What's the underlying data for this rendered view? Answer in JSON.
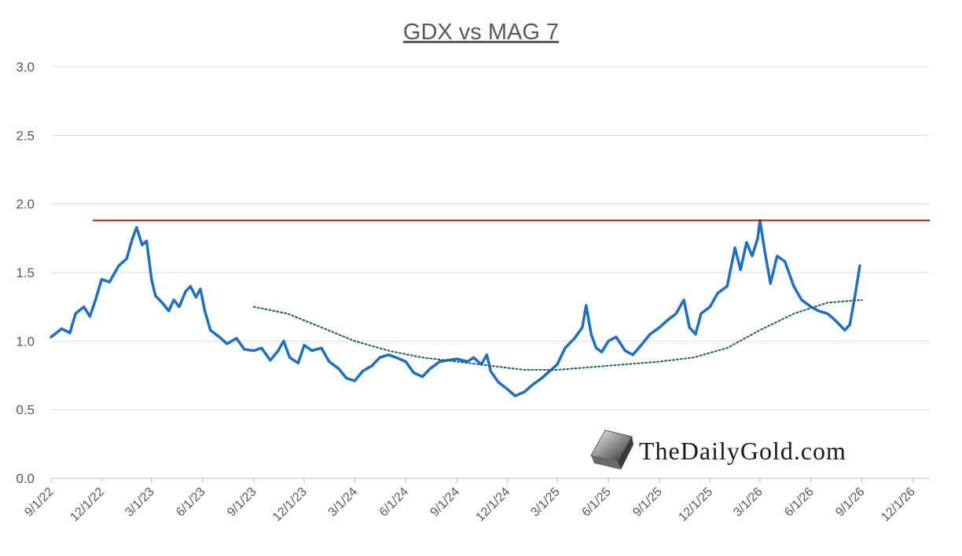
{
  "chart_data": {
    "type": "line",
    "title": "GDX vs MAG 7",
    "xlabel": "",
    "ylabel": "",
    "ylim": [
      0,
      3.0
    ],
    "yticks": [
      "0.0",
      "0.5",
      "1.0",
      "1.5",
      "2.0",
      "2.5",
      "3.0"
    ],
    "xlim": [
      "2022-09-01",
      "2027-01-01"
    ],
    "xticks": [
      "9/1/22",
      "12/1/22",
      "3/1/23",
      "6/1/23",
      "9/1/23",
      "12/1/23",
      "3/1/24",
      "6/1/24",
      "9/1/24",
      "12/1/24",
      "3/1/25",
      "6/1/25",
      "9/1/25",
      "12/1/25",
      "3/1/26",
      "6/1/26",
      "9/1/26",
      "12/1/26"
    ],
    "grid": true,
    "legend": "none",
    "series": [
      {
        "style": "solid",
        "color": "#1f6fbf",
        "points": [
          [
            "2022-09-01",
            1.03
          ],
          [
            "2022-09-20",
            1.09
          ],
          [
            "2022-10-05",
            1.06
          ],
          [
            "2022-10-15",
            1.2
          ],
          [
            "2022-10-30",
            1.25
          ],
          [
            "2022-11-10",
            1.18
          ],
          [
            "2022-11-20",
            1.3
          ],
          [
            "2022-12-01",
            1.45
          ],
          [
            "2022-12-15",
            1.43
          ],
          [
            "2023-01-01",
            1.55
          ],
          [
            "2023-01-15",
            1.6
          ],
          [
            "2023-01-25",
            1.74
          ],
          [
            "2023-02-02",
            1.83
          ],
          [
            "2023-02-12",
            1.7
          ],
          [
            "2023-02-20",
            1.73
          ],
          [
            "2023-03-01",
            1.45
          ],
          [
            "2023-03-08",
            1.33
          ],
          [
            "2023-03-20",
            1.28
          ],
          [
            "2023-04-01",
            1.22
          ],
          [
            "2023-04-10",
            1.3
          ],
          [
            "2023-04-20",
            1.25
          ],
          [
            "2023-05-01",
            1.36
          ],
          [
            "2023-05-10",
            1.4
          ],
          [
            "2023-05-20",
            1.32
          ],
          [
            "2023-05-28",
            1.38
          ],
          [
            "2023-06-05",
            1.22
          ],
          [
            "2023-06-15",
            1.08
          ],
          [
            "2023-07-01",
            1.03
          ],
          [
            "2023-07-15",
            0.98
          ],
          [
            "2023-08-01",
            1.02
          ],
          [
            "2023-08-15",
            0.94
          ],
          [
            "2023-09-01",
            0.93
          ],
          [
            "2023-09-15",
            0.95
          ],
          [
            "2023-10-01",
            0.86
          ],
          [
            "2023-10-15",
            0.93
          ],
          [
            "2023-10-25",
            1.0
          ],
          [
            "2023-11-05",
            0.88
          ],
          [
            "2023-11-20",
            0.84
          ],
          [
            "2023-12-01",
            0.97
          ],
          [
            "2023-12-15",
            0.93
          ],
          [
            "2024-01-01",
            0.95
          ],
          [
            "2024-01-15",
            0.85
          ],
          [
            "2024-02-01",
            0.8
          ],
          [
            "2024-02-15",
            0.73
          ],
          [
            "2024-03-01",
            0.71
          ],
          [
            "2024-03-15",
            0.78
          ],
          [
            "2024-04-01",
            0.82
          ],
          [
            "2024-04-15",
            0.88
          ],
          [
            "2024-05-01",
            0.9
          ],
          [
            "2024-05-15",
            0.88
          ],
          [
            "2024-06-01",
            0.85
          ],
          [
            "2024-06-15",
            0.77
          ],
          [
            "2024-07-01",
            0.74
          ],
          [
            "2024-07-15",
            0.8
          ],
          [
            "2024-08-01",
            0.85
          ],
          [
            "2024-08-15",
            0.86
          ],
          [
            "2024-09-01",
            0.87
          ],
          [
            "2024-09-20",
            0.85
          ],
          [
            "2024-10-01",
            0.88
          ],
          [
            "2024-10-15",
            0.83
          ],
          [
            "2024-10-25",
            0.9
          ],
          [
            "2024-11-01",
            0.78
          ],
          [
            "2024-11-15",
            0.7
          ],
          [
            "2024-12-01",
            0.65
          ],
          [
            "2024-12-15",
            0.6
          ],
          [
            "2025-01-01",
            0.63
          ],
          [
            "2025-01-15",
            0.68
          ],
          [
            "2025-02-01",
            0.73
          ],
          [
            "2025-02-15",
            0.78
          ],
          [
            "2025-03-01",
            0.83
          ],
          [
            "2025-03-15",
            0.95
          ],
          [
            "2025-04-01",
            1.02
          ],
          [
            "2025-04-15",
            1.1
          ],
          [
            "2025-04-22",
            1.26
          ],
          [
            "2025-05-01",
            1.05
          ],
          [
            "2025-05-10",
            0.95
          ],
          [
            "2025-05-20",
            0.92
          ],
          [
            "2025-06-01",
            1.0
          ],
          [
            "2025-06-15",
            1.03
          ],
          [
            "2025-07-01",
            0.93
          ],
          [
            "2025-07-15",
            0.9
          ],
          [
            "2025-08-01",
            0.98
          ],
          [
            "2025-08-15",
            1.05
          ],
          [
            "2025-09-01",
            1.1
          ],
          [
            "2025-09-15",
            1.15
          ],
          [
            "2025-10-01",
            1.2
          ],
          [
            "2025-10-15",
            1.3
          ],
          [
            "2025-10-25",
            1.1
          ],
          [
            "2025-11-05",
            1.05
          ],
          [
            "2025-11-15",
            1.2
          ],
          [
            "2025-12-01",
            1.25
          ],
          [
            "2025-12-15",
            1.35
          ],
          [
            "2026-01-01",
            1.4
          ],
          [
            "2026-01-15",
            1.68
          ],
          [
            "2026-01-25",
            1.52
          ],
          [
            "2026-02-05",
            1.72
          ],
          [
            "2026-02-15",
            1.62
          ],
          [
            "2026-02-25",
            1.75
          ],
          [
            "2026-03-01",
            1.88
          ],
          [
            "2026-03-10",
            1.65
          ],
          [
            "2026-03-20",
            1.42
          ],
          [
            "2026-04-01",
            1.62
          ],
          [
            "2026-04-15",
            1.58
          ],
          [
            "2026-05-01",
            1.4
          ],
          [
            "2026-05-15",
            1.3
          ],
          [
            "2026-06-01",
            1.25
          ],
          [
            "2026-06-15",
            1.22
          ],
          [
            "2026-07-01",
            1.2
          ],
          [
            "2026-07-15",
            1.15
          ],
          [
            "2026-08-01",
            1.08
          ],
          [
            "2026-08-10",
            1.12
          ],
          [
            "2026-08-20",
            1.35
          ],
          [
            "2026-08-28",
            1.55
          ]
        ]
      },
      {
        "style": "dotted",
        "color": "#1f5c6b",
        "points": [
          [
            "2023-09-01",
            1.25
          ],
          [
            "2023-11-01",
            1.2
          ],
          [
            "2024-01-01",
            1.1
          ],
          [
            "2024-03-01",
            1.0
          ],
          [
            "2024-05-01",
            0.93
          ],
          [
            "2024-07-01",
            0.88
          ],
          [
            "2024-09-01",
            0.85
          ],
          [
            "2024-11-01",
            0.82
          ],
          [
            "2025-01-01",
            0.79
          ],
          [
            "2025-03-01",
            0.79
          ],
          [
            "2025-05-01",
            0.81
          ],
          [
            "2025-07-01",
            0.83
          ],
          [
            "2025-09-01",
            0.85
          ],
          [
            "2025-11-01",
            0.88
          ],
          [
            "2026-01-01",
            0.95
          ],
          [
            "2026-03-01",
            1.08
          ],
          [
            "2026-05-01",
            1.2
          ],
          [
            "2026-07-01",
            1.28
          ],
          [
            "2026-09-01",
            1.3
          ]
        ]
      }
    ],
    "annotations": [
      {
        "type": "hline",
        "y": 1.88,
        "x_start": "2022-11-15",
        "x_end": "2027-01-01",
        "color": "#a61c1c"
      }
    ]
  },
  "watermark": {
    "text": "TheDailyGold.com",
    "icon": "gold-bar-logo-icon"
  }
}
